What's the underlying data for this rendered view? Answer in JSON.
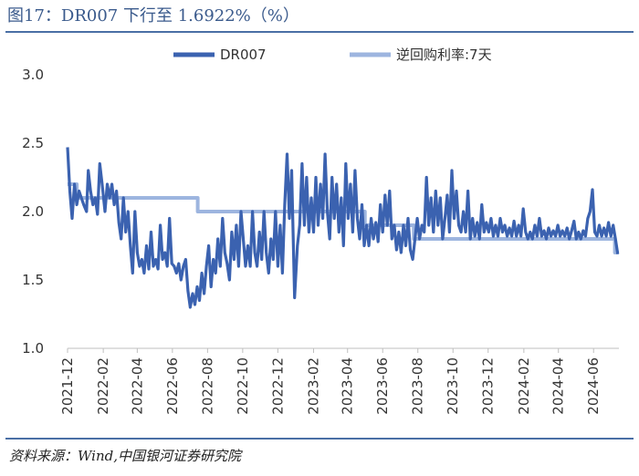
{
  "header": {
    "title": "图17：DR007 下行至 1.6922%（%）"
  },
  "footer": {
    "source": "资料来源：Wind,中国银河证券研究院"
  },
  "colors": {
    "rule": "#4a6fa5",
    "title": "#3a5a8c",
    "dr007": "#3b62b0",
    "reverse_repo": "#9db5df",
    "axis": "#bfbfbf"
  },
  "chart_data": {
    "type": "line",
    "title": "",
    "xlabel": "",
    "ylabel": "",
    "ylim": [
      1.0,
      3.0
    ],
    "yticks": [
      "1.0",
      "1.5",
      "2.0",
      "2.5",
      "3.0"
    ],
    "xlim": [
      "2021-12-01",
      "2024-07-15"
    ],
    "xticks": [
      "2021-12",
      "2022-02",
      "2022-04",
      "2022-06",
      "2022-08",
      "2022-10",
      "2022-12",
      "2023-02",
      "2023-04",
      "2023-06",
      "2023-08",
      "2023-10",
      "2023-12",
      "2024-02",
      "2024-04",
      "2024-06"
    ],
    "grid": false,
    "legend_position": "top",
    "series": [
      {
        "name": "DR007",
        "style": "volatile",
        "points": [
          [
            "2021-12-01",
            2.47
          ],
          [
            "2021-12-05",
            2.15
          ],
          [
            "2021-12-09",
            1.95
          ],
          [
            "2021-12-13",
            2.2
          ],
          [
            "2021-12-17",
            2.05
          ],
          [
            "2021-12-21",
            2.15
          ],
          [
            "2021-12-25",
            2.1
          ],
          [
            "2021-12-29",
            2.05
          ],
          [
            "2022-01-03",
            2.0
          ],
          [
            "2022-01-06",
            2.3
          ],
          [
            "2022-01-10",
            2.15
          ],
          [
            "2022-01-14",
            2.05
          ],
          [
            "2022-01-18",
            2.1
          ],
          [
            "2022-01-22",
            1.98
          ],
          [
            "2022-01-26",
            2.35
          ],
          [
            "2022-01-30",
            2.2
          ],
          [
            "2022-02-04",
            2.0
          ],
          [
            "2022-02-08",
            2.2
          ],
          [
            "2022-02-12",
            2.1
          ],
          [
            "2022-02-16",
            2.2
          ],
          [
            "2022-02-20",
            2.05
          ],
          [
            "2022-02-24",
            2.15
          ],
          [
            "2022-02-28",
            1.92
          ],
          [
            "2022-03-04",
            1.8
          ],
          [
            "2022-03-08",
            2.1
          ],
          [
            "2022-03-12",
            1.85
          ],
          [
            "2022-03-16",
            2.0
          ],
          [
            "2022-03-20",
            1.75
          ],
          [
            "2022-03-24",
            1.55
          ],
          [
            "2022-03-28",
            2.0
          ],
          [
            "2022-04-01",
            1.7
          ],
          [
            "2022-04-05",
            1.6
          ],
          [
            "2022-04-09",
            1.65
          ],
          [
            "2022-04-13",
            1.55
          ],
          [
            "2022-04-17",
            1.75
          ],
          [
            "2022-04-21",
            1.58
          ],
          [
            "2022-04-25",
            1.85
          ],
          [
            "2022-04-29",
            1.6
          ],
          [
            "2022-05-03",
            1.65
          ],
          [
            "2022-05-07",
            1.58
          ],
          [
            "2022-05-11",
            1.9
          ],
          [
            "2022-05-15",
            1.65
          ],
          [
            "2022-05-19",
            1.7
          ],
          [
            "2022-05-23",
            1.6
          ],
          [
            "2022-05-27",
            1.95
          ],
          [
            "2022-05-31",
            1.62
          ],
          [
            "2022-06-04",
            1.6
          ],
          [
            "2022-06-08",
            1.55
          ],
          [
            "2022-06-12",
            1.62
          ],
          [
            "2022-06-16",
            1.5
          ],
          [
            "2022-06-20",
            1.6
          ],
          [
            "2022-06-24",
            1.65
          ],
          [
            "2022-06-28",
            1.42
          ],
          [
            "2022-07-02",
            1.3
          ],
          [
            "2022-07-06",
            1.4
          ],
          [
            "2022-07-10",
            1.32
          ],
          [
            "2022-07-14",
            1.45
          ],
          [
            "2022-07-18",
            1.35
          ],
          [
            "2022-07-22",
            1.55
          ],
          [
            "2022-07-26",
            1.4
          ],
          [
            "2022-07-30",
            1.6
          ],
          [
            "2022-08-03",
            1.75
          ],
          [
            "2022-08-07",
            1.45
          ],
          [
            "2022-08-11",
            1.65
          ],
          [
            "2022-08-15",
            1.55
          ],
          [
            "2022-08-19",
            1.8
          ],
          [
            "2022-08-23",
            1.6
          ],
          [
            "2022-08-27",
            1.95
          ],
          [
            "2022-08-31",
            1.7
          ],
          [
            "2022-09-04",
            1.62
          ],
          [
            "2022-09-08",
            1.5
          ],
          [
            "2022-09-12",
            1.85
          ],
          [
            "2022-09-16",
            1.65
          ],
          [
            "2022-09-20",
            1.9
          ],
          [
            "2022-09-24",
            1.6
          ],
          [
            "2022-09-28",
            2.0
          ],
          [
            "2022-10-02",
            1.8
          ],
          [
            "2022-10-06",
            1.6
          ],
          [
            "2022-10-10",
            1.75
          ],
          [
            "2022-10-14",
            1.6
          ],
          [
            "2022-10-18",
            2.0
          ],
          [
            "2022-10-22",
            1.7
          ],
          [
            "2022-10-26",
            1.6
          ],
          [
            "2022-10-30",
            1.85
          ],
          [
            "2022-11-03",
            1.65
          ],
          [
            "2022-11-07",
            2.0
          ],
          [
            "2022-11-11",
            1.7
          ],
          [
            "2022-11-15",
            1.55
          ],
          [
            "2022-11-19",
            1.8
          ],
          [
            "2022-11-23",
            1.65
          ],
          [
            "2022-11-27",
            2.0
          ],
          [
            "2022-12-01",
            1.6
          ],
          [
            "2022-12-05",
            1.9
          ],
          [
            "2022-12-09",
            1.55
          ],
          [
            "2022-12-13",
            2.05
          ],
          [
            "2022-12-17",
            2.42
          ],
          [
            "2022-12-21",
            1.95
          ],
          [
            "2022-12-25",
            2.3
          ],
          [
            "2022-12-30",
            1.37
          ],
          [
            "2023-01-04",
            1.75
          ],
          [
            "2023-01-08",
            1.9
          ],
          [
            "2023-01-12",
            2.35
          ],
          [
            "2023-01-16",
            1.9
          ],
          [
            "2023-01-20",
            2.25
          ],
          [
            "2023-01-24",
            1.85
          ],
          [
            "2023-01-28",
            2.1
          ],
          [
            "2023-02-01",
            1.85
          ],
          [
            "2023-02-05",
            2.25
          ],
          [
            "2023-02-09",
            1.9
          ],
          [
            "2023-02-13",
            2.2
          ],
          [
            "2023-02-17",
            1.95
          ],
          [
            "2023-02-21",
            2.42
          ],
          [
            "2023-02-25",
            2.0
          ],
          [
            "2023-03-01",
            1.8
          ],
          [
            "2023-03-05",
            2.25
          ],
          [
            "2023-03-09",
            1.95
          ],
          [
            "2023-03-13",
            2.2
          ],
          [
            "2023-03-17",
            1.85
          ],
          [
            "2023-03-21",
            2.1
          ],
          [
            "2023-03-25",
            1.75
          ],
          [
            "2023-03-29",
            2.35
          ],
          [
            "2023-04-02",
            1.95
          ],
          [
            "2023-04-06",
            2.2
          ],
          [
            "2023-04-10",
            1.85
          ],
          [
            "2023-04-14",
            2.3
          ],
          [
            "2023-04-18",
            1.95
          ],
          [
            "2023-04-22",
            1.8
          ],
          [
            "2023-04-26",
            2.05
          ],
          [
            "2023-04-30",
            1.75
          ],
          [
            "2023-05-04",
            1.9
          ],
          [
            "2023-05-08",
            1.75
          ],
          [
            "2023-05-12",
            1.95
          ],
          [
            "2023-05-16",
            1.8
          ],
          [
            "2023-05-20",
            1.92
          ],
          [
            "2023-05-24",
            1.78
          ],
          [
            "2023-05-28",
            2.05
          ],
          [
            "2023-06-01",
            1.85
          ],
          [
            "2023-06-05",
            2.12
          ],
          [
            "2023-06-09",
            1.9
          ],
          [
            "2023-06-13",
            2.15
          ],
          [
            "2023-06-17",
            1.8
          ],
          [
            "2023-06-21",
            1.9
          ],
          [
            "2023-06-25",
            1.72
          ],
          [
            "2023-06-29",
            1.85
          ],
          [
            "2023-07-03",
            1.7
          ],
          [
            "2023-07-07",
            1.9
          ],
          [
            "2023-07-11",
            1.75
          ],
          [
            "2023-07-15",
            1.95
          ],
          [
            "2023-07-19",
            1.72
          ],
          [
            "2023-07-23",
            1.65
          ],
          [
            "2023-07-27",
            1.8
          ],
          [
            "2023-07-31",
            1.95
          ],
          [
            "2023-08-04",
            1.8
          ],
          [
            "2023-08-08",
            1.9
          ],
          [
            "2023-08-12",
            1.85
          ],
          [
            "2023-08-16",
            2.25
          ],
          [
            "2023-08-20",
            1.9
          ],
          [
            "2023-08-24",
            2.1
          ],
          [
            "2023-08-28",
            1.85
          ],
          [
            "2023-09-01",
            2.15
          ],
          [
            "2023-09-05",
            1.9
          ],
          [
            "2023-09-09",
            2.1
          ],
          [
            "2023-09-13",
            1.8
          ],
          [
            "2023-09-17",
            1.95
          ],
          [
            "2023-09-21",
            2.12
          ],
          [
            "2023-09-25",
            1.85
          ],
          [
            "2023-09-29",
            2.3
          ],
          [
            "2023-10-03",
            1.95
          ],
          [
            "2023-10-07",
            2.15
          ],
          [
            "2023-10-11",
            1.9
          ],
          [
            "2023-10-15",
            1.85
          ],
          [
            "2023-10-19",
            2.0
          ],
          [
            "2023-10-23",
            1.85
          ],
          [
            "2023-10-27",
            2.15
          ],
          [
            "2023-10-31",
            1.8
          ],
          [
            "2023-11-04",
            1.95
          ],
          [
            "2023-11-08",
            1.82
          ],
          [
            "2023-11-12",
            1.92
          ],
          [
            "2023-11-16",
            1.8
          ],
          [
            "2023-11-20",
            2.05
          ],
          [
            "2023-11-24",
            1.85
          ],
          [
            "2023-11-28",
            1.92
          ],
          [
            "2023-12-02",
            1.85
          ],
          [
            "2023-12-06",
            1.95
          ],
          [
            "2023-12-10",
            1.82
          ],
          [
            "2023-12-14",
            1.9
          ],
          [
            "2023-12-18",
            1.82
          ],
          [
            "2023-12-22",
            1.95
          ],
          [
            "2023-12-26",
            1.85
          ],
          [
            "2023-12-30",
            1.9
          ],
          [
            "2024-01-03",
            1.82
          ],
          [
            "2024-01-07",
            1.88
          ],
          [
            "2024-01-11",
            1.82
          ],
          [
            "2024-01-15",
            1.93
          ],
          [
            "2024-01-19",
            1.82
          ],
          [
            "2024-01-23",
            1.9
          ],
          [
            "2024-01-27",
            1.82
          ],
          [
            "2024-01-31",
            2.02
          ],
          [
            "2024-02-04",
            1.85
          ],
          [
            "2024-02-08",
            1.8
          ],
          [
            "2024-02-12",
            1.85
          ],
          [
            "2024-02-16",
            1.8
          ],
          [
            "2024-02-20",
            1.9
          ],
          [
            "2024-02-24",
            1.82
          ],
          [
            "2024-02-28",
            1.95
          ],
          [
            "2024-03-03",
            1.82
          ],
          [
            "2024-03-07",
            1.86
          ],
          [
            "2024-03-11",
            1.8
          ],
          [
            "2024-03-15",
            1.88
          ],
          [
            "2024-03-19",
            1.82
          ],
          [
            "2024-03-23",
            1.86
          ],
          [
            "2024-03-27",
            1.82
          ],
          [
            "2024-03-31",
            1.9
          ],
          [
            "2024-04-04",
            1.82
          ],
          [
            "2024-04-08",
            1.86
          ],
          [
            "2024-04-12",
            1.82
          ],
          [
            "2024-04-16",
            1.88
          ],
          [
            "2024-04-20",
            1.8
          ],
          [
            "2024-04-24",
            1.86
          ],
          [
            "2024-04-28",
            1.93
          ],
          [
            "2024-05-02",
            1.8
          ],
          [
            "2024-05-06",
            1.85
          ],
          [
            "2024-05-10",
            1.8
          ],
          [
            "2024-05-14",
            1.86
          ],
          [
            "2024-05-18",
            1.82
          ],
          [
            "2024-05-22",
            1.95
          ],
          [
            "2024-05-26",
            2.0
          ],
          [
            "2024-05-30",
            2.16
          ],
          [
            "2024-06-03",
            1.85
          ],
          [
            "2024-06-07",
            1.82
          ],
          [
            "2024-06-11",
            1.9
          ],
          [
            "2024-06-15",
            1.82
          ],
          [
            "2024-06-19",
            1.88
          ],
          [
            "2024-06-23",
            1.82
          ],
          [
            "2024-06-27",
            1.92
          ],
          [
            "2024-07-01",
            1.82
          ],
          [
            "2024-07-05",
            1.9
          ],
          [
            "2024-07-09",
            1.8
          ],
          [
            "2024-07-13",
            1.69
          ]
        ]
      },
      {
        "name": "逆回购利率:7天",
        "style": "step",
        "points": [
          [
            "2021-12-01",
            2.2
          ],
          [
            "2021-12-17",
            2.2
          ],
          [
            "2021-12-17",
            2.1
          ],
          [
            "2022-07-15",
            2.1
          ],
          [
            "2022-07-15",
            2.0
          ],
          [
            "2023-05-01",
            2.0
          ],
          [
            "2023-05-01",
            1.9
          ],
          [
            "2023-07-25",
            1.9
          ],
          [
            "2023-07-25",
            1.8
          ],
          [
            "2024-07-08",
            1.8
          ],
          [
            "2024-07-08",
            1.7
          ],
          [
            "2024-07-15",
            1.7
          ]
        ]
      }
    ]
  }
}
